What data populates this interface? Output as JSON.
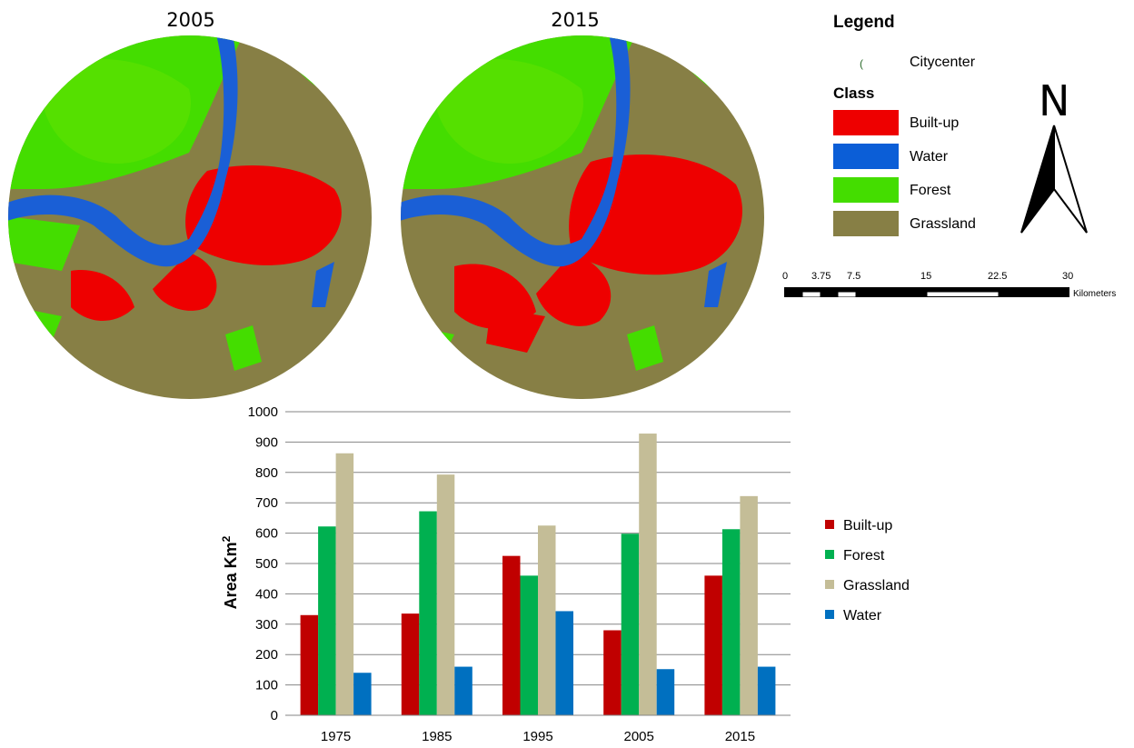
{
  "maps": {
    "left_title": "2005",
    "right_title": "2015"
  },
  "legend": {
    "heading": "Legend",
    "citycenter_label": "Citycenter",
    "class_heading": "Class",
    "classes": [
      {
        "label": "Built-up",
        "color": "#ee0000"
      },
      {
        "label": "Water",
        "color": "#0b5ed7"
      },
      {
        "label": "Forest",
        "color": "#44dd00"
      },
      {
        "label": "Grassland",
        "color": "#877f45"
      }
    ],
    "north_label": "N"
  },
  "scalebar": {
    "ticks": [
      "0",
      "3.75",
      "7.5",
      "15",
      "22.5",
      "30"
    ],
    "unit": "Kilometers"
  },
  "colors": {
    "builtup": "#c00000",
    "forest": "#00b050",
    "grassland": "#c4bd97",
    "water": "#0070c0"
  },
  "chart_data": {
    "type": "bar",
    "categories": [
      "1975",
      "1985",
      "1995",
      "2005",
      "2015"
    ],
    "series": [
      {
        "name": "Built-up",
        "color": "#c00000",
        "values": [
          330,
          335,
          525,
          280,
          460
        ]
      },
      {
        "name": "Forest",
        "color": "#00b050",
        "values": [
          622,
          672,
          460,
          598,
          613
        ]
      },
      {
        "name": "Grassland",
        "color": "#c4bd97",
        "values": [
          863,
          793,
          625,
          928,
          722
        ]
      },
      {
        "name": "Water",
        "color": "#0070c0",
        "values": [
          140,
          160,
          343,
          152,
          160
        ]
      }
    ],
    "yticks": [
      "0",
      "100",
      "200",
      "300",
      "400",
      "500",
      "600",
      "700",
      "800",
      "900",
      "1000"
    ],
    "ylim": [
      0,
      1000
    ],
    "ylabel": "Area Km",
    "ylabel_superscript": "2",
    "xlabel": "",
    "grid": true,
    "legend_position": "right"
  }
}
